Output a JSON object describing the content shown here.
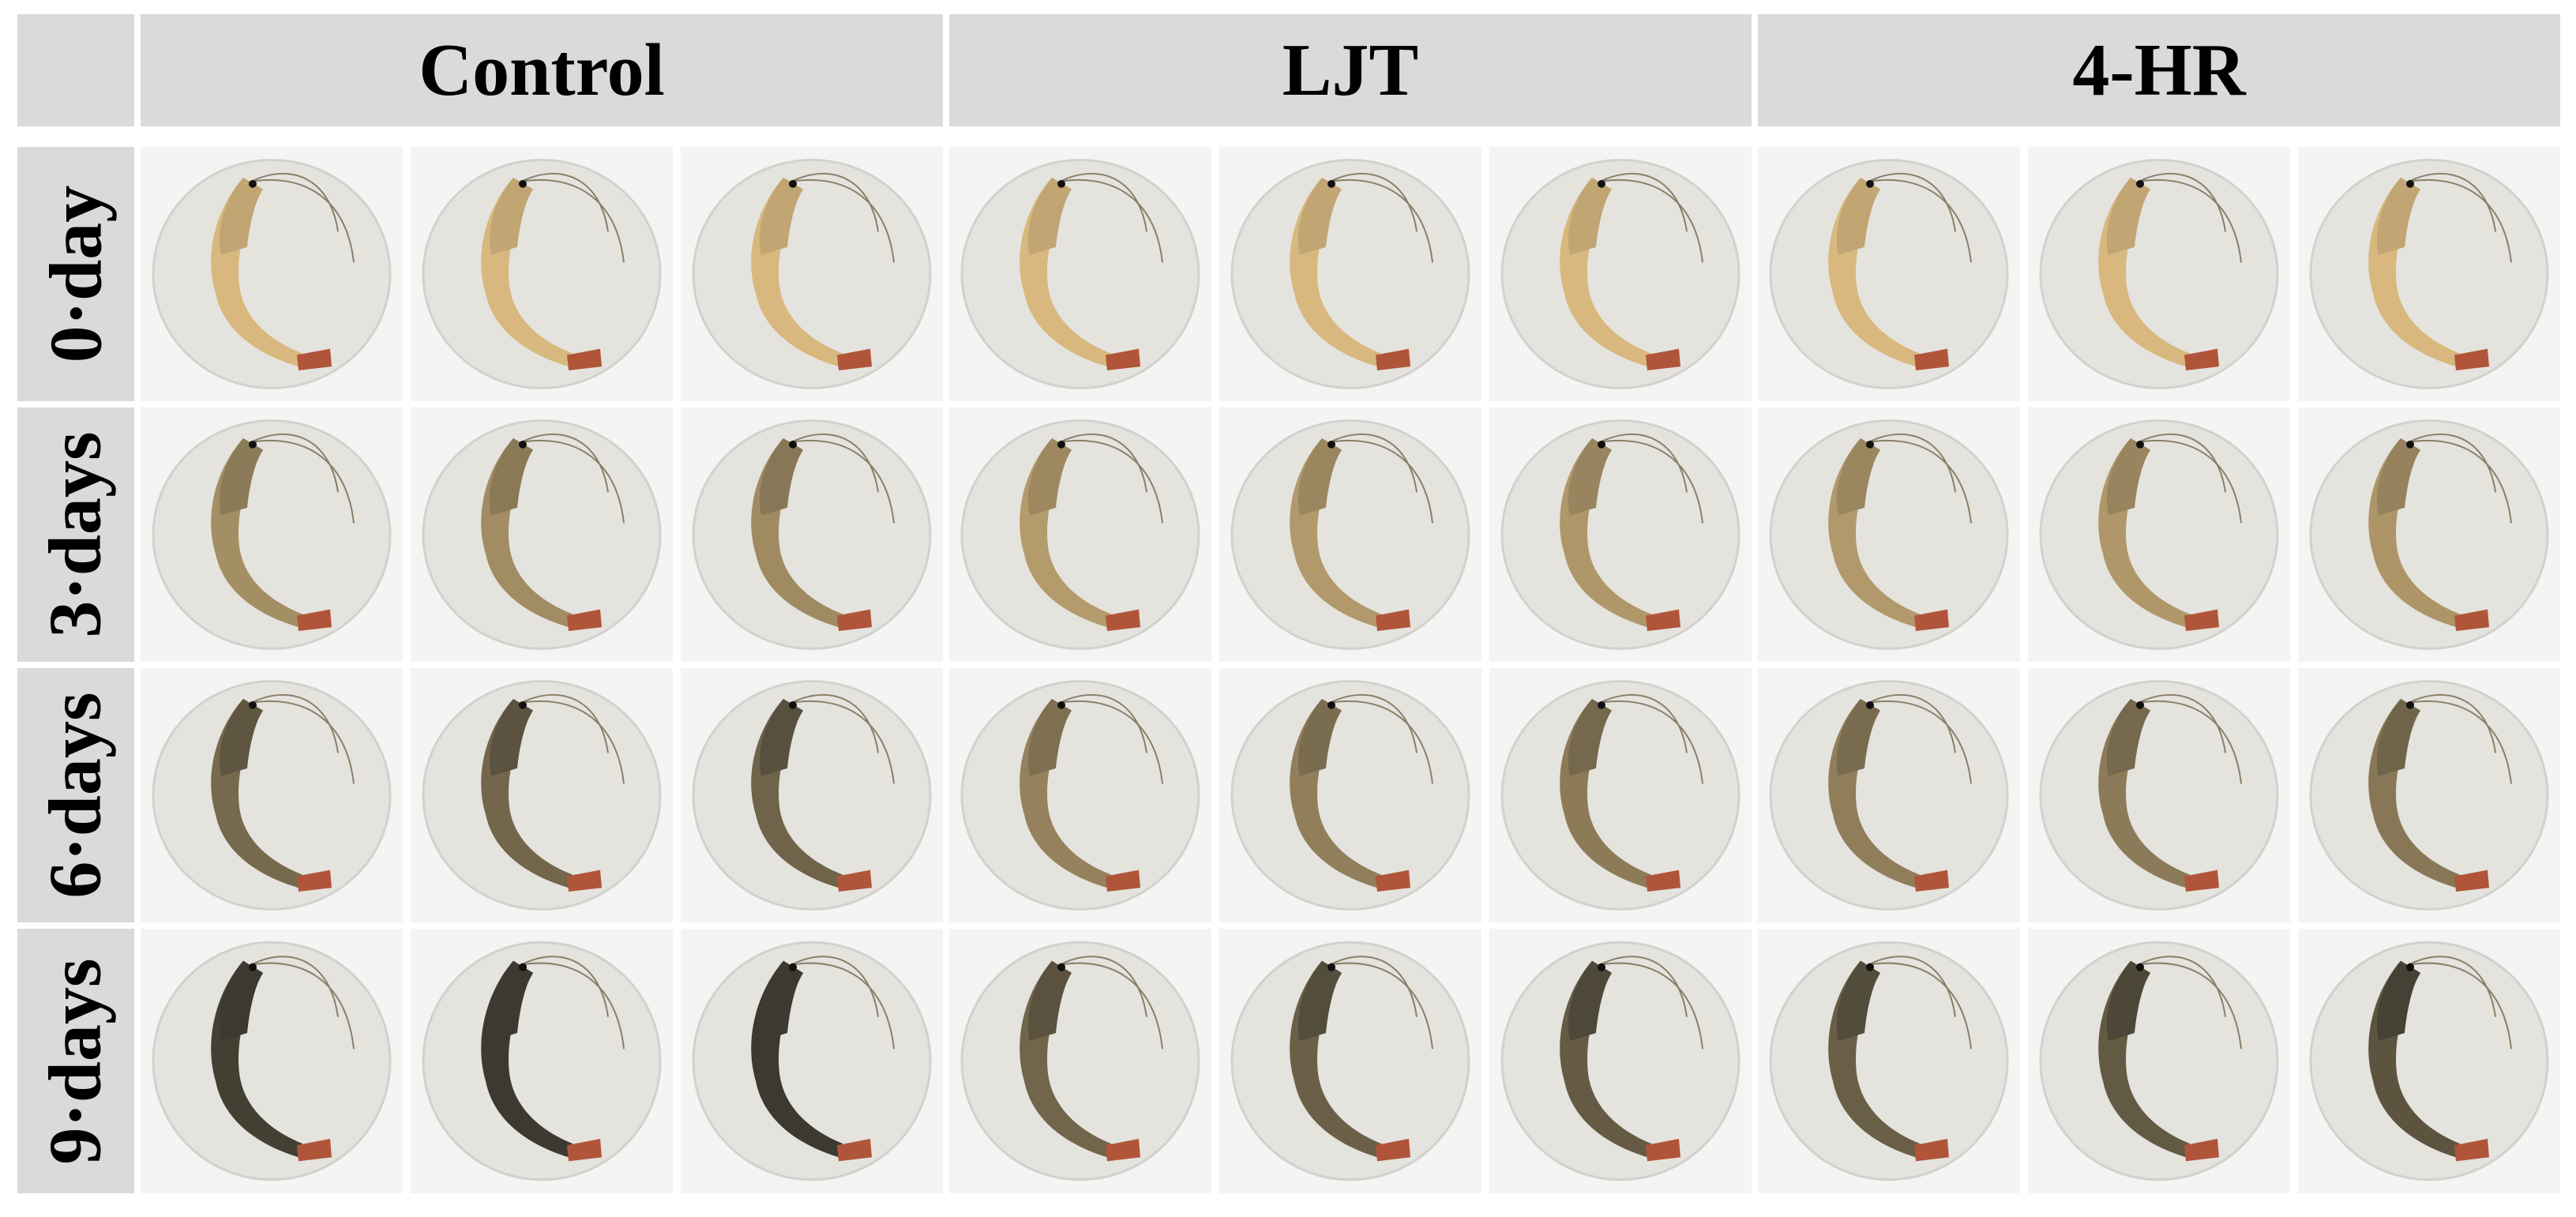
{
  "columns": [
    {
      "label": "Control"
    },
    {
      "label": "LJT"
    },
    {
      "label": "4-HR"
    }
  ],
  "rows": [
    {
      "label": "0·day",
      "darkness": 0.0
    },
    {
      "label": "3·days",
      "darkness": 0.35
    },
    {
      "label": "6·days",
      "darkness": 0.65
    },
    {
      "label": "9·days",
      "darkness": 1.0
    }
  ],
  "group_darkness_factor": [
    1.0,
    0.7,
    0.75
  ],
  "colors": {
    "header_bg": "#d9dadb",
    "dish": "#e4e3de",
    "dish_edge": "#d2d1cc",
    "shrimp_fresh": "#d8b87e",
    "shrimp_dark": "#3c3a30",
    "tail": "#b0553a"
  }
}
